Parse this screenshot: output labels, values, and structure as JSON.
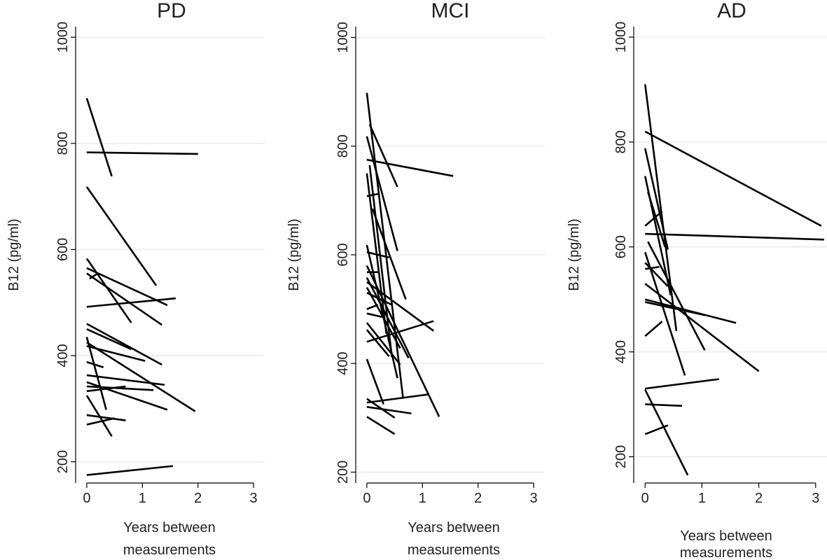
{
  "chart_data": [
    {
      "type": "line",
      "title": "PD",
      "xlabel_line1": "Years between",
      "xlabel_line2": "measurements",
      "ylabel": "B12 (pg/ml)",
      "xlim": [
        -0.2,
        3.2
      ],
      "ylim": [
        160,
        1020
      ],
      "xticks": [
        0,
        1,
        2,
        3
      ],
      "yticks": [
        200,
        400,
        600,
        800,
        1000
      ],
      "grid": true,
      "segments": [
        [
          [
            0.0,
            885
          ],
          [
            0.45,
            738
          ]
        ],
        [
          [
            0.0,
            783
          ],
          [
            2.0,
            780
          ]
        ],
        [
          [
            0.0,
            718
          ],
          [
            1.25,
            532
          ]
        ],
        [
          [
            0.0,
            583
          ],
          [
            0.8,
            462
          ]
        ],
        [
          [
            0.0,
            565
          ],
          [
            1.45,
            495
          ]
        ],
        [
          [
            0.0,
            555
          ],
          [
            1.35,
            458
          ]
        ],
        [
          [
            0.05,
            545
          ],
          [
            0.2,
            555
          ]
        ],
        [
          [
            0.0,
            492
          ],
          [
            1.6,
            508
          ]
        ],
        [
          [
            0.0,
            460
          ],
          [
            1.35,
            383
          ]
        ],
        [
          [
            0.0,
            450
          ],
          [
            0.8,
            412
          ]
        ],
        [
          [
            0.0,
            435
          ],
          [
            0.35,
            298
          ]
        ],
        [
          [
            0.0,
            425
          ],
          [
            1.95,
            295
          ]
        ],
        [
          [
            0.0,
            418
          ],
          [
            1.05,
            390
          ]
        ],
        [
          [
            0.0,
            388
          ],
          [
            0.3,
            378
          ]
        ],
        [
          [
            0.0,
            363
          ],
          [
            1.4,
            345
          ]
        ],
        [
          [
            0.0,
            350
          ],
          [
            1.45,
            298
          ]
        ],
        [
          [
            0.0,
            342
          ],
          [
            1.2,
            335
          ]
        ],
        [
          [
            0.0,
            333
          ],
          [
            0.7,
            342
          ]
        ],
        [
          [
            0.0,
            325
          ],
          [
            0.45,
            248
          ]
        ],
        [
          [
            0.0,
            288
          ],
          [
            0.7,
            278
          ]
        ],
        [
          [
            0.0,
            270
          ],
          [
            0.5,
            282
          ]
        ],
        [
          [
            0.0,
            175
          ],
          [
            1.55,
            192
          ]
        ]
      ]
    },
    {
      "type": "line",
      "title": "MCI",
      "xlabel_line1": "Years between",
      "xlabel_line2": "measurements",
      "ylabel": "B12 (pg/ml)",
      "xlim": [
        -0.2,
        3.2
      ],
      "ylim": [
        180,
        1020
      ],
      "xticks": [
        0,
        1,
        2,
        3
      ],
      "yticks": [
        200,
        400,
        600,
        800,
        1000
      ],
      "grid": true,
      "segments": [
        [
          [
            0.0,
            898
          ],
          [
            0.65,
            337
          ]
        ],
        [
          [
            0.05,
            840
          ],
          [
            0.55,
            725
          ]
        ],
        [
          [
            0.0,
            818
          ],
          [
            0.55,
            607
          ]
        ],
        [
          [
            0.0,
            775
          ],
          [
            1.55,
            745
          ]
        ],
        [
          [
            0.05,
            765
          ],
          [
            0.45,
            412
          ]
        ],
        [
          [
            0.0,
            750
          ],
          [
            0.35,
            455
          ]
        ],
        [
          [
            0.0,
            708
          ],
          [
            0.2,
            712
          ]
        ],
        [
          [
            0.1,
            685
          ],
          [
            0.7,
            518
          ]
        ],
        [
          [
            0.0,
            618
          ],
          [
            0.55,
            373
          ]
        ],
        [
          [
            0.0,
            605
          ],
          [
            0.4,
            595
          ]
        ],
        [
          [
            0.0,
            580
          ],
          [
            1.3,
            302
          ]
        ],
        [
          [
            0.0,
            568
          ],
          [
            0.2,
            568
          ]
        ],
        [
          [
            0.0,
            558
          ],
          [
            0.75,
            410
          ]
        ],
        [
          [
            0.0,
            550
          ],
          [
            1.2,
            460
          ]
        ],
        [
          [
            0.0,
            540
          ],
          [
            0.6,
            428
          ]
        ],
        [
          [
            0.0,
            530
          ],
          [
            0.45,
            508
          ]
        ],
        [
          [
            0.0,
            500
          ],
          [
            0.2,
            508
          ]
        ],
        [
          [
            0.0,
            492
          ],
          [
            0.3,
            485
          ]
        ],
        [
          [
            0.0,
            475
          ],
          [
            0.6,
            398
          ]
        ],
        [
          [
            0.0,
            462
          ],
          [
            0.4,
            413
          ]
        ],
        [
          [
            0.0,
            440
          ],
          [
            1.2,
            478
          ]
        ],
        [
          [
            0.0,
            408
          ],
          [
            0.3,
            325
          ]
        ],
        [
          [
            0.0,
            335
          ],
          [
            0.5,
            300
          ]
        ],
        [
          [
            0.0,
            328
          ],
          [
            1.1,
            343
          ]
        ],
        [
          [
            0.0,
            320
          ],
          [
            0.8,
            308
          ]
        ],
        [
          [
            0.0,
            302
          ],
          [
            0.5,
            270
          ]
        ]
      ]
    },
    {
      "type": "line",
      "title": "AD",
      "xlabel_line1": "Years between",
      "xlabel_line2": "measurements",
      "ylabel": "B12 (pg/ml)",
      "xlim": [
        -0.2,
        3.2
      ],
      "ylim": [
        150,
        1020
      ],
      "xticks": [
        0,
        1,
        2,
        3
      ],
      "yticks": [
        200,
        400,
        600,
        800,
        1000
      ],
      "grid": true,
      "segments": [
        [
          [
            0.0,
            910
          ],
          [
            0.55,
            440
          ]
        ],
        [
          [
            0.0,
            820
          ],
          [
            3.1,
            640
          ]
        ],
        [
          [
            0.0,
            788
          ],
          [
            0.4,
            595
          ]
        ],
        [
          [
            0.0,
            735
          ],
          [
            0.45,
            508
          ]
        ],
        [
          [
            0.05,
            705
          ],
          [
            0.35,
            600
          ]
        ],
        [
          [
            0.0,
            640
          ],
          [
            0.3,
            668
          ]
        ],
        [
          [
            0.0,
            625
          ],
          [
            3.15,
            614
          ]
        ],
        [
          [
            0.05,
            610
          ],
          [
            1.05,
            403
          ]
        ],
        [
          [
            0.0,
            590
          ],
          [
            0.7,
            355
          ]
        ],
        [
          [
            0.0,
            570
          ],
          [
            0.4,
            525
          ]
        ],
        [
          [
            0.0,
            558
          ],
          [
            0.25,
            562
          ]
        ],
        [
          [
            0.0,
            530
          ],
          [
            2.0,
            363
          ]
        ],
        [
          [
            0.0,
            500
          ],
          [
            1.6,
            455
          ]
        ],
        [
          [
            0.0,
            495
          ],
          [
            1.05,
            470
          ]
        ],
        [
          [
            0.0,
            430
          ],
          [
            0.3,
            458
          ]
        ],
        [
          [
            0.0,
            330
          ],
          [
            1.3,
            348
          ]
        ],
        [
          [
            0.0,
            328
          ],
          [
            0.75,
            165
          ]
        ],
        [
          [
            0.0,
            300
          ],
          [
            0.65,
            297
          ]
        ],
        [
          [
            0.0,
            243
          ],
          [
            0.4,
            260
          ]
        ]
      ]
    }
  ]
}
